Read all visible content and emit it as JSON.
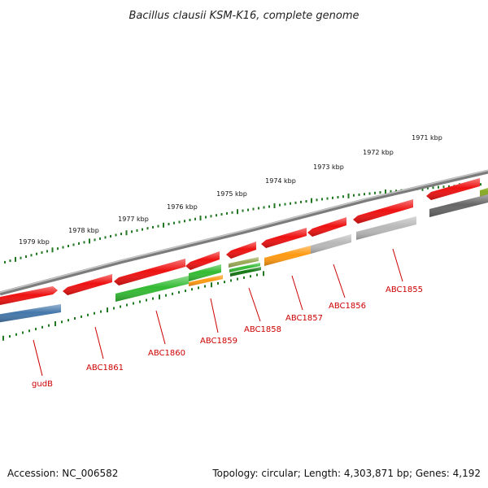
{
  "title": "Bacillus clausii KSM-K16, complete genome",
  "footer": {
    "accession": "Accession: NC_006582",
    "summary": "Topology: circular; Length: 4,303,871 bp; Genes: 4,192"
  },
  "kbp_labels": [
    "1979 kbp",
    "1978 kbp",
    "1977 kbp",
    "1976 kbp",
    "1975 kbp",
    "1974 kbp",
    "1973 kbp",
    "1972 kbp",
    "1971 kbp"
  ],
  "gene_labels": [
    "gudB",
    "ABC1861",
    "ABC1860",
    "ABC1859",
    "ABC1858",
    "ABC1857",
    "ABC1856",
    "ABC1855"
  ],
  "colors": {
    "red": "#ee1111",
    "green": "#33bb33",
    "dark_green": "#117711",
    "olive": "#99aa55",
    "orange": "#ff9911",
    "gray": "#b8b8b8",
    "dark_gray": "#666666",
    "blue": "#4477aa",
    "olive_green": "#88aa22",
    "backbone": "#808080",
    "tick": "#227722",
    "label": "#cc0000"
  }
}
